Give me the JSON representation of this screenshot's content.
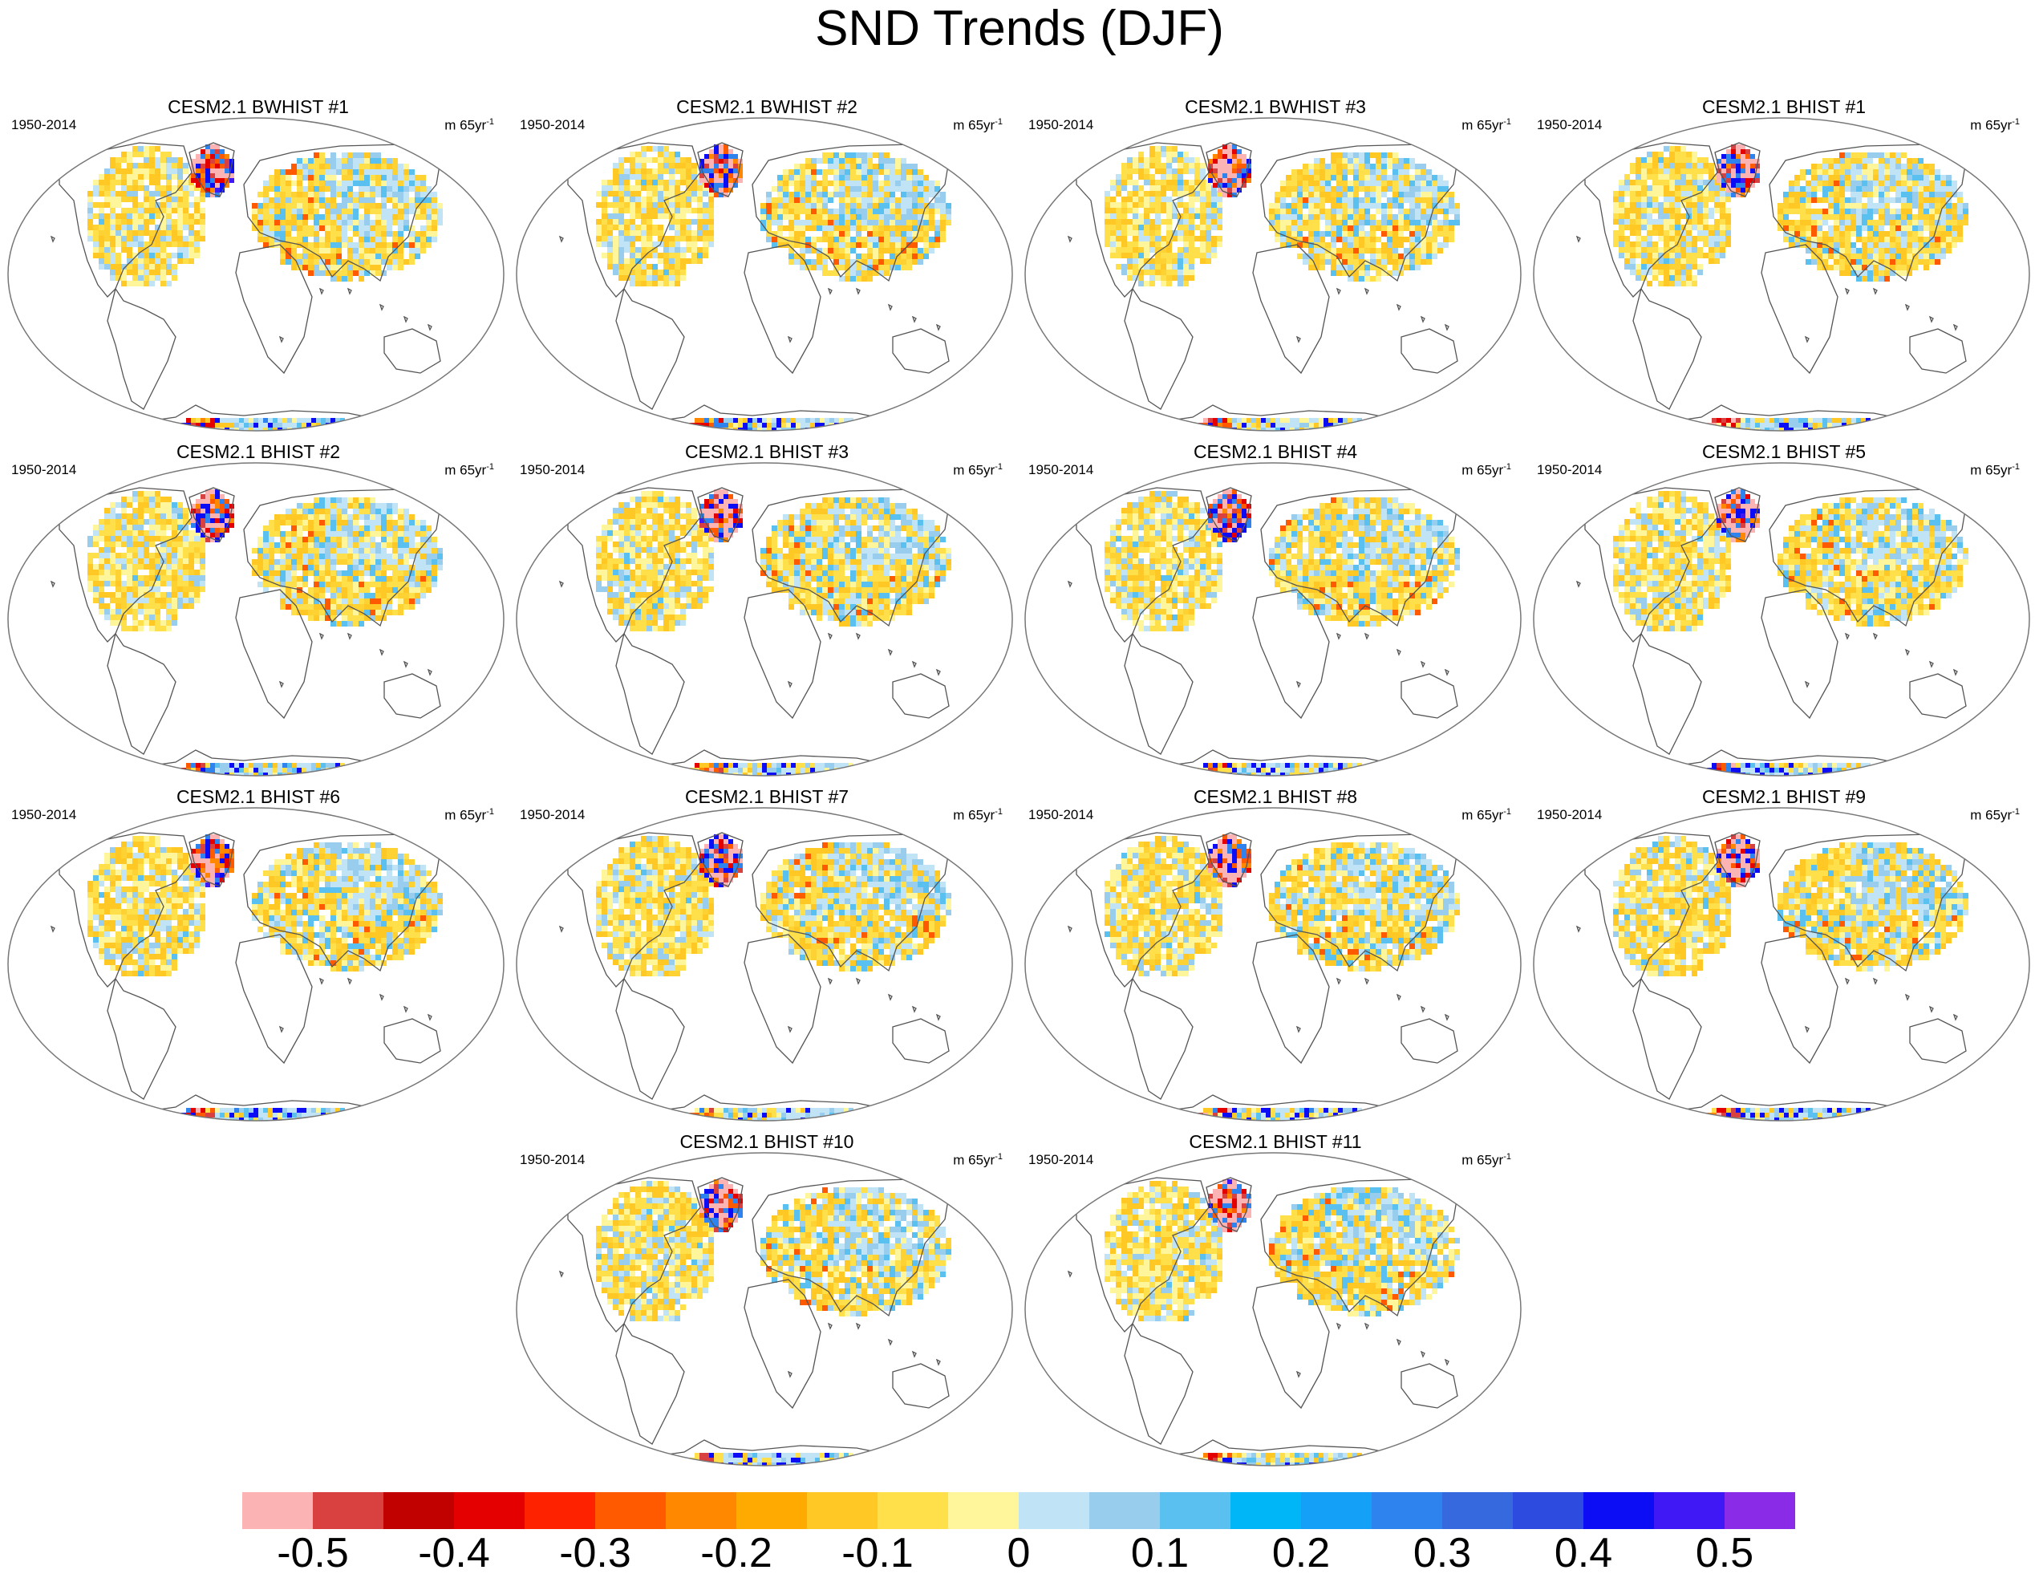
{
  "title": "SND Trends (DJF)",
  "panel_period": "1950-2014",
  "panel_units_base": "m 65yr",
  "panel_units_exp": "-1",
  "panels": [
    {
      "title": "CESM2.1 BWHIST #1",
      "seed": 3
    },
    {
      "title": "CESM2.1 BWHIST #2",
      "seed": 11
    },
    {
      "title": "CESM2.1 BWHIST #3",
      "seed": 19
    },
    {
      "title": "CESM2.1 BHIST #1",
      "seed": 27
    },
    {
      "title": "CESM2.1 BHIST #2",
      "seed": 35
    },
    {
      "title": "CESM2.1 BHIST #3",
      "seed": 43
    },
    {
      "title": "CESM2.1 BHIST #4",
      "seed": 51
    },
    {
      "title": "CESM2.1 BHIST #5",
      "seed": 59
    },
    {
      "title": "CESM2.1 BHIST #6",
      "seed": 67
    },
    {
      "title": "CESM2.1 BHIST #7",
      "seed": 75
    },
    {
      "title": "CESM2.1 BHIST #8",
      "seed": 83
    },
    {
      "title": "CESM2.1 BHIST #9",
      "seed": 91
    },
    {
      "title": "CESM2.1 BHIST #10",
      "seed": 99
    },
    {
      "title": "CESM2.1 BHIST #11",
      "seed": 107
    }
  ],
  "colorbar": {
    "colors": [
      "#fbb3b3",
      "#d94040",
      "#c10000",
      "#e40000",
      "#ff2200",
      "#ff5a00",
      "#ff8800",
      "#ffaa00",
      "#ffc825",
      "#ffe04a",
      "#fff59a",
      "#c0e4f6",
      "#98cdee",
      "#5ac0ef",
      "#00b6f7",
      "#14a0f6",
      "#2e83ef",
      "#3569dd",
      "#2e4be0",
      "#0c0cf5",
      "#4018f5",
      "#8a2be8"
    ],
    "labels": [
      "-0.5",
      "-0.4",
      "-0.3",
      "-0.2",
      "-0.1",
      "0",
      "0.1",
      "0.2",
      "0.3",
      "0.4",
      "0.5"
    ]
  }
}
